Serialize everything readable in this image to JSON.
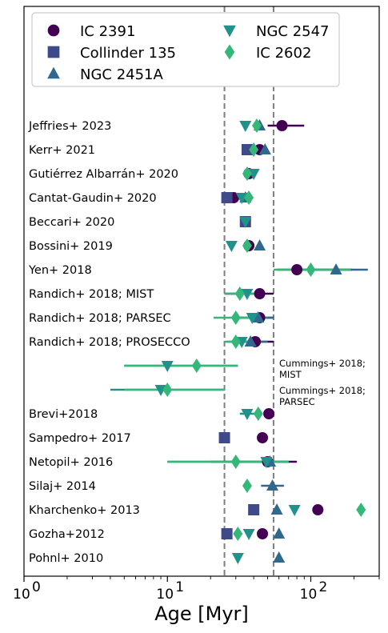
{
  "chart_data": {
    "type": "scatter",
    "xlabel": "Age [Myr]",
    "xscale": "log",
    "xlim": [
      1,
      300
    ],
    "xticks": [
      {
        "value": 1,
        "base": "10",
        "exp": "0"
      },
      {
        "value": 10,
        "base": "10",
        "exp": "1"
      },
      {
        "value": 100,
        "base": "10",
        "exp": "2"
      }
    ],
    "vlines": [
      25,
      55
    ],
    "grid": false,
    "legend_position": "top",
    "colors": {
      "IC 2391": "#440154",
      "Collinder 135": "#3e4a89",
      "NGC 2451A": "#31688e",
      "NGC 2547": "#21918c",
      "IC 2602": "#35b779"
    },
    "series": [
      {
        "name": "IC 2391",
        "marker": "circle"
      },
      {
        "name": "Collinder 135",
        "marker": "square"
      },
      {
        "name": "NGC 2451A",
        "marker": "triangle-up"
      },
      {
        "name": "NGC 2547",
        "marker": "triangle-down"
      },
      {
        "name": "IC 2602",
        "marker": "diamond"
      }
    ],
    "studies": [
      {
        "label": "Jeffries+ 2023",
        "points": [
          {
            "series": "IC 2391",
            "x": 63,
            "xerr": [
              50,
              90
            ]
          },
          {
            "series": "NGC 2451A",
            "x": 44
          },
          {
            "series": "NGC 2547",
            "x": 35
          },
          {
            "series": "IC 2602",
            "x": 42
          }
        ]
      },
      {
        "label": "Kerr+ 2021",
        "points": [
          {
            "series": "Collinder 135",
            "x": 36
          },
          {
            "series": "IC 2391",
            "x": 44
          },
          {
            "series": "NGC 2451A",
            "x": 48
          },
          {
            "series": "IC 2602",
            "x": 40
          }
        ]
      },
      {
        "label": "Gutiérrez Albarrán+ 2020",
        "points": [
          {
            "series": "IC 2391",
            "x": 37
          },
          {
            "series": "NGC 2547",
            "x": 40
          },
          {
            "series": "IC 2602",
            "x": 36
          }
        ]
      },
      {
        "label": "Cantat-Gaudin+ 2020",
        "points": [
          {
            "series": "Collinder 135",
            "x": 26
          },
          {
            "series": "IC 2391",
            "x": 29
          },
          {
            "series": "NGC 2451A",
            "x": 35
          },
          {
            "series": "NGC 2547",
            "x": 33
          },
          {
            "series": "IC 2602",
            "x": 37
          }
        ]
      },
      {
        "label": "Beccari+ 2020",
        "points": [
          {
            "series": "Collinder 135",
            "x": 35
          },
          {
            "series": "NGC 2547",
            "x": 35
          }
        ]
      },
      {
        "label": "Bossini+ 2019",
        "points": [
          {
            "series": "IC 2391",
            "x": 37
          },
          {
            "series": "NGC 2451A",
            "x": 44
          },
          {
            "series": "NGC 2547",
            "x": 28
          },
          {
            "series": "IC 2602",
            "x": 36
          }
        ]
      },
      {
        "label": "Yen+ 2018",
        "points": [
          {
            "series": "IC 2391",
            "x": 80,
            "xerr": [
              58,
              195
            ]
          },
          {
            "series": "NGC 2451A",
            "x": 150,
            "xerr": [
              85,
              250
            ]
          },
          {
            "series": "IC 2602",
            "x": 100,
            "xerr": [
              55,
              190
            ]
          }
        ]
      },
      {
        "label": "Randich+ 2018; MIST",
        "points": [
          {
            "series": "IC 2391",
            "x": 44,
            "xerr": [
              25,
              55
            ]
          },
          {
            "series": "NGC 2547",
            "x": 36,
            "xerr": [
              28,
              48
            ]
          },
          {
            "series": "IC 2602",
            "x": 32,
            "xerr": [
              25,
              42
            ]
          }
        ]
      },
      {
        "label": "Randich+ 2018; PARSEC",
        "points": [
          {
            "series": "IC 2391",
            "x": 44,
            "xerr": [
              30,
              55
            ]
          },
          {
            "series": "NGC 2451A",
            "x": 43,
            "xerr": [
              30,
              55
            ]
          },
          {
            "series": "NGC 2547",
            "x": 39,
            "xerr": [
              30,
              50
            ]
          },
          {
            "series": "IC 2602",
            "x": 30,
            "xerr": [
              21,
              40
            ]
          }
        ]
      },
      {
        "label": "Randich+ 2018; PROSECCO",
        "points": [
          {
            "series": "IC 2391",
            "x": 41,
            "xerr": [
              30,
              55
            ]
          },
          {
            "series": "NGC 2451A",
            "x": 38,
            "xerr": [
              28,
              50
            ]
          },
          {
            "series": "NGC 2547",
            "x": 33,
            "xerr": [
              26,
              42
            ]
          },
          {
            "series": "IC 2602",
            "x": 30,
            "xerr": [
              25,
              38
            ]
          }
        ]
      },
      {
        "label": "Cummings+ 2018; MIST",
        "annotation": true,
        "points": [
          {
            "series": "NGC 2547",
            "x": 10,
            "xerr": [
              5,
              31
            ]
          },
          {
            "series": "IC 2602",
            "x": 16,
            "xerr": [
              5,
              31
            ]
          }
        ]
      },
      {
        "label": "Cummings+ 2018; PARSEC",
        "annotation": true,
        "points": [
          {
            "series": "NGC 2547",
            "x": 9,
            "xerr": [
              4,
              25
            ]
          },
          {
            "series": "IC 2602",
            "x": 10,
            "xerr": [
              5,
              25
            ]
          }
        ]
      },
      {
        "label": "Brevi+2018",
        "points": [
          {
            "series": "IC 2391",
            "x": 51
          },
          {
            "series": "NGC 2547",
            "x": 36,
            "xerr": [
              32,
              43
            ]
          },
          {
            "series": "IC 2602",
            "x": 43
          }
        ]
      },
      {
        "label": "Sampedro+ 2017",
        "points": [
          {
            "series": "Collinder 135",
            "x": 25
          },
          {
            "series": "IC 2391",
            "x": 46
          }
        ]
      },
      {
        "label": "Netopil+ 2016",
        "points": [
          {
            "series": "IC 2391",
            "x": 50,
            "xerr": [
              20,
              80
            ]
          },
          {
            "series": "NGC 2451A",
            "x": 52,
            "xerr": [
              30,
              70
            ]
          },
          {
            "series": "NGC 2547",
            "x": 49,
            "xerr": [
              10,
              70
            ]
          },
          {
            "series": "IC 2602",
            "x": 30,
            "xerr": [
              10,
              70
            ]
          }
        ]
      },
      {
        "label": "Silaj+ 2014",
        "points": [
          {
            "series": "NGC 2451A",
            "x": 54,
            "xerr": [
              45,
              65
            ]
          },
          {
            "series": "IC 2602",
            "x": 36
          }
        ]
      },
      {
        "label": "Kharchenko+ 2013",
        "points": [
          {
            "series": "IC 2391",
            "x": 112
          },
          {
            "series": "Collinder 135",
            "x": 40
          },
          {
            "series": "NGC 2451A",
            "x": 58
          },
          {
            "series": "NGC 2547",
            "x": 77
          },
          {
            "series": "IC 2602",
            "x": 224
          }
        ]
      },
      {
        "label": "Gozha+2012",
        "points": [
          {
            "series": "Collinder 135",
            "x": 26
          },
          {
            "series": "IC 2391",
            "x": 46
          },
          {
            "series": "NGC 2451A",
            "x": 60
          },
          {
            "series": "NGC 2547",
            "x": 37
          },
          {
            "series": "IC 2602",
            "x": 31
          }
        ]
      },
      {
        "label": "Pohnl+ 2010",
        "points": [
          {
            "series": "NGC 2547",
            "x": 31
          },
          {
            "series": "NGC 2451A",
            "x": 60
          }
        ]
      }
    ]
  }
}
